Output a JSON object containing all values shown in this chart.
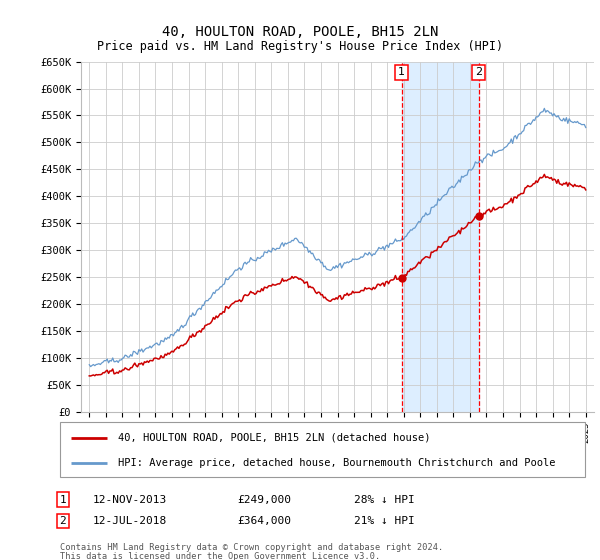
{
  "title": "40, HOULTON ROAD, POOLE, BH15 2LN",
  "subtitle": "Price paid vs. HM Land Registry's House Price Index (HPI)",
  "ylim": [
    0,
    650000
  ],
  "yticks": [
    0,
    50000,
    100000,
    150000,
    200000,
    250000,
    300000,
    350000,
    400000,
    450000,
    500000,
    550000,
    600000,
    650000
  ],
  "ytick_labels": [
    "£0",
    "£50K",
    "£100K",
    "£150K",
    "£200K",
    "£250K",
    "£300K",
    "£350K",
    "£400K",
    "£450K",
    "£500K",
    "£550K",
    "£600K",
    "£650K"
  ],
  "xlim_start": 1994.5,
  "xlim_end": 2025.5,
  "transaction1": {
    "date_str": "12-NOV-2013",
    "year": 2013.87,
    "price": 249000,
    "label": "1"
  },
  "transaction2": {
    "date_str": "12-JUL-2018",
    "year": 2018.53,
    "price": 364000,
    "label": "2"
  },
  "legend_line1": "40, HOULTON ROAD, POOLE, BH15 2LN (detached house)",
  "legend_line2": "HPI: Average price, detached house, Bournemouth Christchurch and Poole",
  "footnote1": "Contains HM Land Registry data © Crown copyright and database right 2024.",
  "footnote2": "This data is licensed under the Open Government Licence v3.0.",
  "table_row1": [
    "1",
    "12-NOV-2013",
    "£249,000",
    "28% ↓ HPI"
  ],
  "table_row2": [
    "2",
    "12-JUL-2018",
    "£364,000",
    "21% ↓ HPI"
  ],
  "red_line_color": "#cc0000",
  "blue_line_color": "#6699cc",
  "shade_color": "#ddeeff",
  "grid_color": "#cccccc",
  "background_color": "#ffffff",
  "marker_color": "#cc0000"
}
